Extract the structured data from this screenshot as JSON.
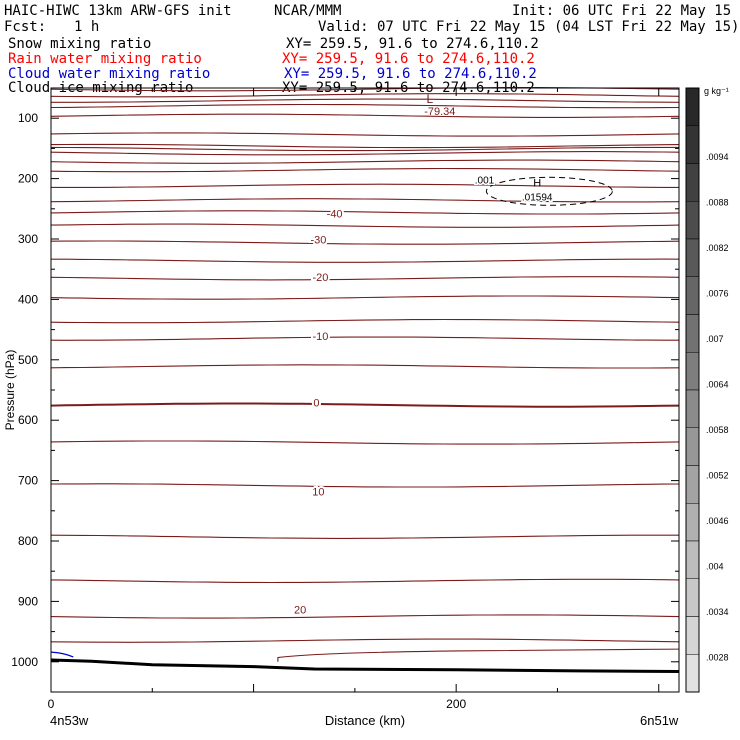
{
  "header": {
    "model": "HAIC-HIWC 13km ARW-GFS init",
    "org": "NCAR/MMM",
    "init": "Init: 06 UTC Fri 22 May 15",
    "fcst_label": "Fcst:",
    "fcst_value": "1 h",
    "valid": "Valid: 07 UTC Fri 22 May 15 (04 LST Fri 22 May 15)"
  },
  "fields": [
    {
      "name": "Snow mixing ratio",
      "xy": "XY= 259.5, 91.6 to 274.6,110.2",
      "color": "#000000"
    },
    {
      "name": "Rain water mixing ratio",
      "xy": "XY= 259.5, 91.6 to 274.6,110.2",
      "color": "#ff0000"
    },
    {
      "name": "Cloud water mixing ratio",
      "xy": "XY= 259.5, 91.6 to 274.6,110.2",
      "color": "#0000cc"
    },
    {
      "name": "Cloud ice mixing ratio",
      "xy": "XY= 259.5, 91.6 to 274.6,110.2",
      "color": "#000000"
    }
  ],
  "chart_data": {
    "type": "line",
    "xlabel": "Distance (km)",
    "ylabel": "Pressure (hPa)",
    "x_ticks": [
      "0",
      "200"
    ],
    "x_range": [
      0,
      310
    ],
    "y_ticks": [
      "100",
      "200",
      "300",
      "400",
      "500",
      "600",
      "700",
      "800",
      "900",
      "1000"
    ],
    "y_range": [
      50,
      1050
    ],
    "left_location": "4n53w",
    "right_location": "6n51w",
    "isotherm_color": "#7a1c1c",
    "isotherms_hpa": [
      52,
      62,
      71,
      80,
      96,
      127,
      146,
      151,
      158,
      172,
      186,
      212,
      236,
      256,
      278,
      306,
      336,
      365,
      397,
      436,
      465,
      511,
      575,
      637,
      708,
      793,
      866,
      925,
      965
    ],
    "contour_labels": [
      {
        "text": "-40",
        "x": 140,
        "p": 258
      },
      {
        "text": "-30",
        "x": 132,
        "p": 301
      },
      {
        "text": "-20",
        "x": 133,
        "p": 363
      },
      {
        "text": "-10",
        "x": 133,
        "p": 461
      },
      {
        "text": "0",
        "x": 131,
        "p": 571
      },
      {
        "text": "10",
        "x": 132,
        "p": 718
      },
      {
        "text": "20",
        "x": 123,
        "p": 913
      }
    ],
    "low": {
      "symbol": "L",
      "value": "-79.34",
      "x": 187,
      "p": 75
    },
    "high": {
      "symbol": "H",
      "value": ".01594",
      "x": 240,
      "p": 218
    },
    "ice_contour_label": ".001",
    "colorbar": {
      "unit": "g kg⁻¹",
      "labels": [
        ".0094",
        ".0088",
        ".0082",
        ".0076",
        ".007",
        ".0064",
        ".0058",
        ".0052",
        ".0046",
        ".004",
        ".0034",
        ".0028"
      ]
    }
  }
}
